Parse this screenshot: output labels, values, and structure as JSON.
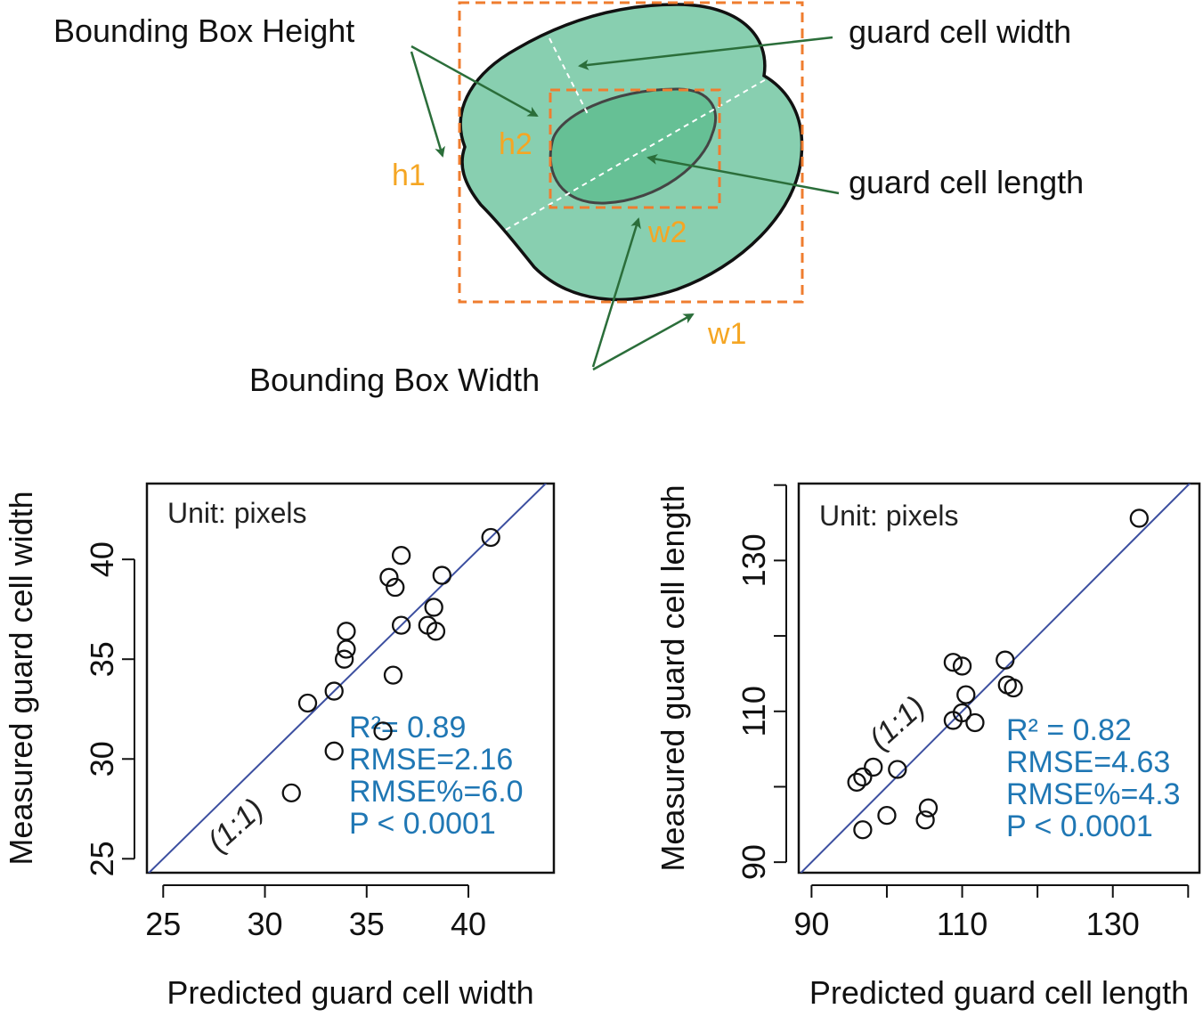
{
  "diagram": {
    "labels": {
      "bbox_height": "Bounding Box Height",
      "bbox_width": "Bounding Box Width",
      "gc_width": "guard cell width",
      "gc_length": "guard cell length",
      "h1": "h1",
      "h2": "h2",
      "w1": "w1",
      "w2": "w2"
    },
    "colors": {
      "outer_fill": "#88cfb0",
      "inner_fill": "#66c095",
      "box_dash": "#ef7d2f",
      "arrow": "#2b6e3a",
      "dim_label": "#f5a623"
    }
  },
  "chart_data": [
    {
      "type": "scatter",
      "xlabel": "Predicted guard cell width",
      "ylabel": "Measured guard cell width",
      "xlim": [
        24.2,
        44.2
      ],
      "ylim": [
        24.3,
        43.8
      ],
      "xticks": [
        25,
        30,
        35,
        40
      ],
      "yticks": [
        25,
        30,
        35,
        40
      ],
      "unit_note": "Unit: pixels",
      "line_label": "(1:1)",
      "stats": [
        "R²= 0.89",
        "RMSE=2.16",
        "RMSE%=6.0",
        "P < 0.0001"
      ],
      "stats_color": "#1f77b4",
      "line_color": "#3c4fa0",
      "points": [
        [
          41.1,
          41.1
        ],
        [
          36.7,
          40.2
        ],
        [
          36.1,
          39.1
        ],
        [
          36.4,
          38.6
        ],
        [
          38.7,
          39.2
        ],
        [
          38.3,
          37.6
        ],
        [
          38.0,
          36.7
        ],
        [
          38.4,
          36.4
        ],
        [
          36.7,
          36.7
        ],
        [
          34.0,
          36.4
        ],
        [
          34.0,
          35.5
        ],
        [
          33.9,
          35.0
        ],
        [
          36.3,
          34.2
        ],
        [
          33.4,
          33.4
        ],
        [
          32.1,
          32.8
        ],
        [
          35.8,
          31.4
        ],
        [
          33.4,
          30.4
        ],
        [
          31.3,
          28.3
        ]
      ]
    },
    {
      "type": "scatter",
      "xlabel": "Predicted guard cell length",
      "ylabel": "Measured guard cell length",
      "xlim": [
        88.3,
        141.5
      ],
      "ylim": [
        88.6,
        140.2
      ],
      "xticks": [
        90,
        110,
        130
      ],
      "yticks": [
        90,
        110,
        130
      ],
      "minor_ticks": [
        100,
        120,
        140
      ],
      "unit_note": "Unit: pixels",
      "line_label": "(1:1)",
      "stats": [
        "R² = 0.82",
        "RMSE=4.63",
        "RMSE%=4.3",
        "P < 0.0001"
      ],
      "stats_color": "#1f77b4",
      "line_color": "#3c4fa0",
      "points": [
        [
          133.5,
          135.6
        ],
        [
          108.8,
          116.5
        ],
        [
          110.0,
          116.0
        ],
        [
          115.7,
          116.8
        ],
        [
          116.0,
          113.5
        ],
        [
          116.8,
          113.1
        ],
        [
          110.5,
          112.2
        ],
        [
          110.0,
          109.8
        ],
        [
          108.8,
          108.8
        ],
        [
          111.7,
          108.5
        ],
        [
          101.4,
          102.3
        ],
        [
          98.2,
          102.6
        ],
        [
          96.8,
          101.3
        ],
        [
          96.0,
          100.6
        ],
        [
          100.0,
          96.2
        ],
        [
          105.5,
          97.2
        ],
        [
          105.1,
          95.6
        ],
        [
          96.8,
          94.3
        ]
      ]
    }
  ]
}
